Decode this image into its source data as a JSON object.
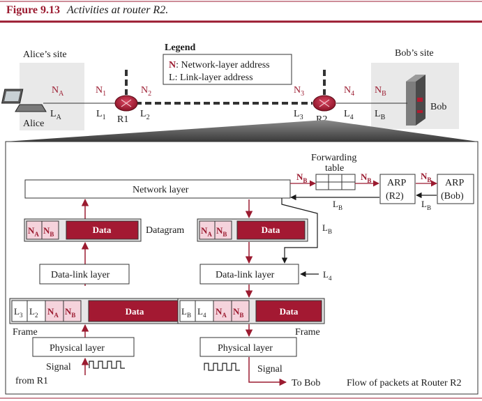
{
  "figure": {
    "number": "Figure 9.13",
    "caption": "Activities at router R2."
  },
  "colors": {
    "accent": "#9b1b30",
    "line": "#1a1a1a",
    "panel_bg": "#e6e6e6",
    "pink": "#f5d3dc",
    "dark_red": "#a31932"
  },
  "legend": {
    "title": "Legend",
    "n_key": "N",
    "n_text": ": Network-layer address",
    "l_key": "L",
    "l_text": ": Link-layer address"
  },
  "top": {
    "alice_site": "Alice’s site",
    "bob_site": "Bob’s site",
    "alice": "Alice",
    "bob": "Bob",
    "r1": "R1",
    "r2": "R2",
    "na": "N",
    "na_sub": "A",
    "la": "L",
    "la_sub": "A",
    "n1": "N",
    "n1_sub": "1",
    "l1": "L",
    "l1_sub": "1",
    "n2": "N",
    "n2_sub": "2",
    "l2": "L",
    "l2_sub": "2",
    "n3": "N",
    "n3_sub": "3",
    "l3": "L",
    "l3_sub": "3",
    "n4": "N",
    "n4_sub": "4",
    "l4": "L",
    "l4_sub": "4",
    "nb": "N",
    "nb_sub": "B",
    "lb": "L",
    "lb_sub": "B"
  },
  "detail": {
    "network_layer": "Network layer",
    "forwarding_table_line1": "Forwarding",
    "forwarding_table_line2": "table",
    "arp_r2_line1": "ARP",
    "arp_r2_line2": "(R2)",
    "arp_bob_line1": "ARP",
    "arp_bob_line2": "(Bob)",
    "datagram": "Datagram",
    "data": "Data",
    "data_link_layer": "Data-link layer",
    "physical_layer": "Physical layer",
    "frame": "Frame",
    "signal": "Signal",
    "from_r1": "from R1",
    "to_bob": "To Bob",
    "flow_caption": "Flow of packets at Router R2",
    "n": "N",
    "l": "L",
    "sub_a": "A",
    "sub_b": "B",
    "sub_2": "2",
    "sub_3": "3",
    "sub_4": "4"
  }
}
